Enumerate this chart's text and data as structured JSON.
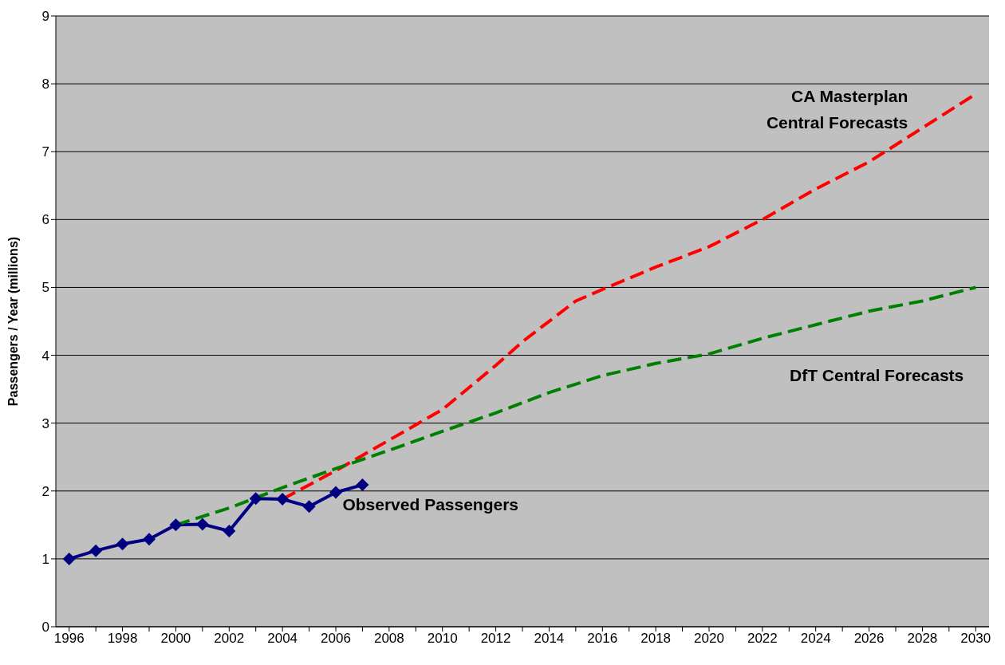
{
  "chart_data": {
    "type": "line",
    "ylabel": "Passengers / Year (millions)",
    "xlim": [
      1995.5,
      2030.5
    ],
    "xticks": [
      1996,
      {
        "value": 1997,
        "label": null
      },
      1998,
      {
        "value": 1999,
        "label": null
      },
      2000,
      {
        "value": 2001,
        "label": null
      },
      2002,
      {
        "value": 2003,
        "label": null
      },
      2004,
      {
        "value": 2005,
        "label": null
      },
      2006,
      {
        "value": 2007,
        "label": null
      },
      2008,
      {
        "value": 2009,
        "label": null
      },
      2010,
      {
        "value": 2011,
        "label": null
      },
      2012,
      {
        "value": 2013,
        "label": null
      },
      2014,
      {
        "value": 2015,
        "label": null
      },
      2016,
      {
        "value": 2017,
        "label": null
      },
      2018,
      {
        "value": 2019,
        "label": null
      },
      2020,
      {
        "value": 2021,
        "label": null
      },
      2022,
      {
        "value": 2023,
        "label": null
      },
      2024,
      {
        "value": 2025,
        "label": null
      },
      2026,
      {
        "value": 2027,
        "label": null
      },
      2028,
      {
        "value": 2029,
        "label": null
      },
      2030
    ],
    "ylim": [
      0,
      9
    ],
    "yticks": [
      0,
      1,
      2,
      3,
      4,
      5,
      6,
      7,
      8,
      9
    ],
    "grid": "y",
    "series": [
      {
        "name": "Observed Passengers",
        "color": "#000080",
        "marker": "diamond",
        "line_style": "solid",
        "x": [
          1996,
          1997,
          1998,
          1999,
          2000,
          2001,
          2002,
          2003,
          2004,
          2005,
          2006,
          2007
        ],
        "values": [
          1.0,
          1.12,
          1.22,
          1.29,
          1.5,
          1.51,
          1.41,
          1.89,
          1.88,
          1.77,
          1.98,
          2.09
        ]
      },
      {
        "name": "CA Masterplan\nCentral Forecasts",
        "color": "#ff0000",
        "marker": "none",
        "line_style": "dashed",
        "x": [
          2004,
          2006,
          2008,
          2010,
          2012,
          2013,
          2015,
          2016,
          2018,
          2020,
          2022,
          2024,
          2025,
          2026,
          2027,
          2028,
          2030
        ],
        "values": [
          1.88,
          2.3,
          2.75,
          3.2,
          3.85,
          4.2,
          4.8,
          4.97,
          5.3,
          5.6,
          6.0,
          6.45,
          6.65,
          6.85,
          7.1,
          7.35,
          7.85
        ]
      },
      {
        "name": "DfT Central Forecasts",
        "color": "#008000",
        "marker": "none",
        "line_style": "dashed",
        "x": [
          2000,
          2002,
          2004,
          2006,
          2008,
          2010,
          2012,
          2014,
          2016,
          2018,
          2020,
          2022,
          2024,
          2026,
          2028,
          2030
        ],
        "values": [
          1.5,
          1.75,
          2.05,
          2.33,
          2.6,
          2.88,
          3.15,
          3.45,
          3.7,
          3.88,
          4.02,
          4.25,
          4.45,
          4.65,
          4.8,
          5.0
        ]
      }
    ]
  }
}
